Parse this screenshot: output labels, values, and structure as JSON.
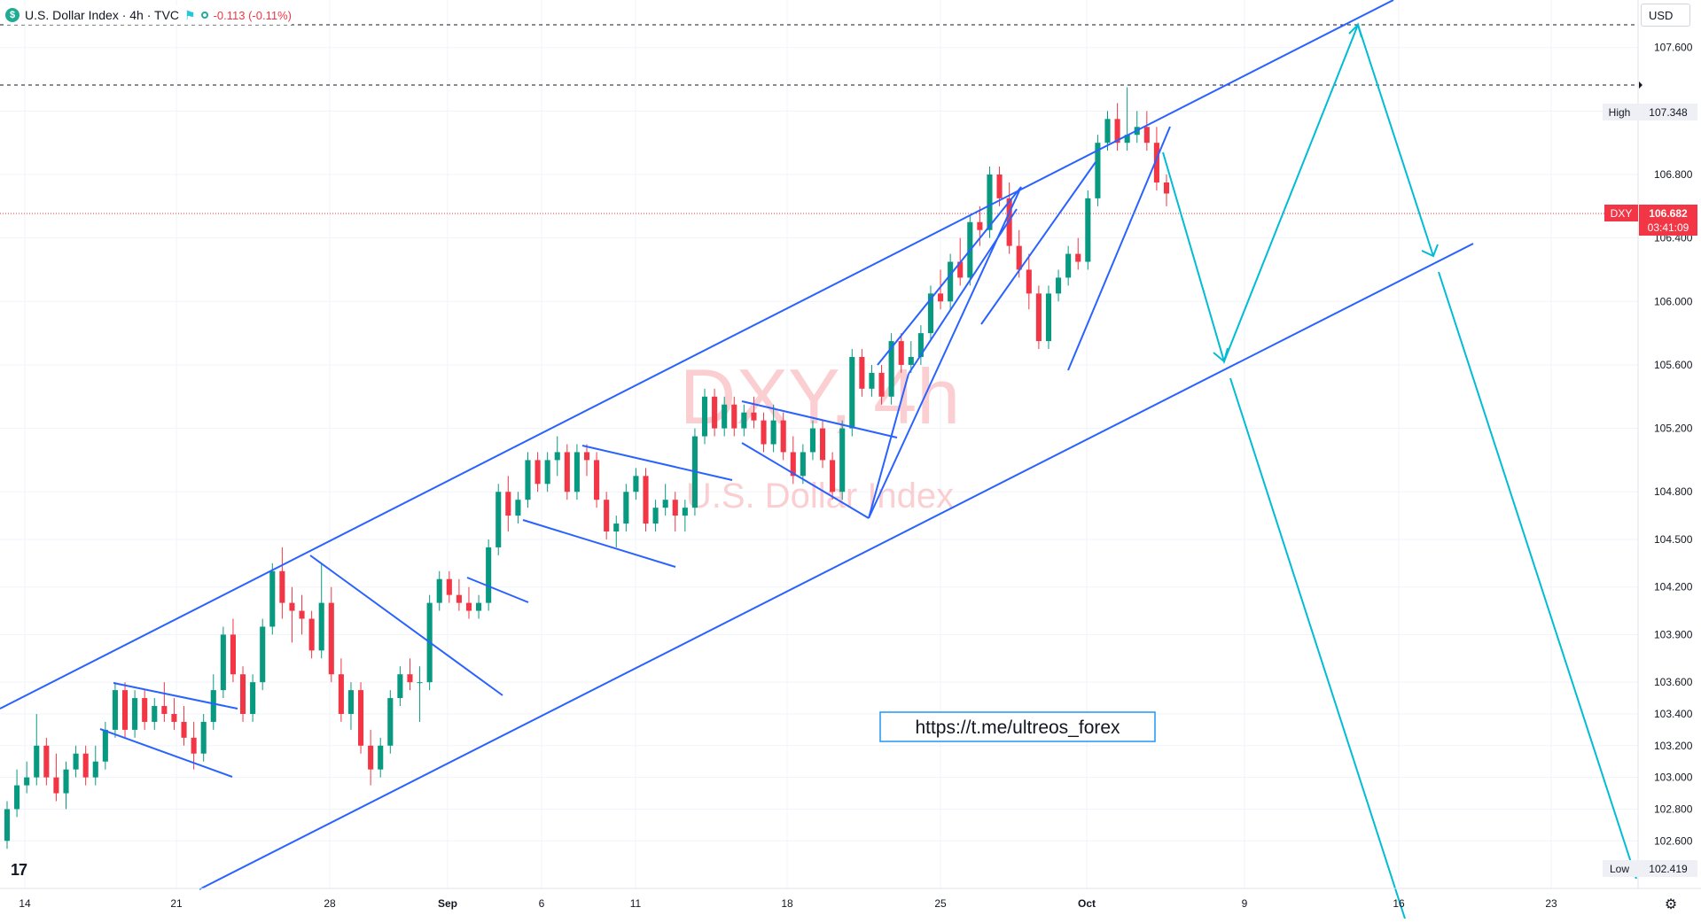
{
  "legend": {
    "symbol_icon": "dollar-circle-icon",
    "title": "U.S. Dollar Index · 4h · TVC",
    "change": "-0.113 (-0.11%)",
    "flag_icon": "flag-icon",
    "status_icon": "market-status-icon"
  },
  "currency_button": "USD",
  "watermark": {
    "symbol": "DXY, 4h",
    "name": "U.S. Dollar Index"
  },
  "telegram_link": "https://t.me/ultreos_forex",
  "colors": {
    "up": "#089981",
    "down": "#f23645",
    "pattern": "#2962ff",
    "projection": "#00bcd4",
    "accent": "#2962ff"
  },
  "price_axis": {
    "labels": [
      "107.600",
      "107.200",
      "106.800",
      "106.400",
      "106.000",
      "105.600",
      "105.200",
      "104.800",
      "104.500",
      "104.200",
      "103.900",
      "103.600",
      "103.400",
      "103.200",
      "103.000",
      "102.800",
      "102.600"
    ],
    "high_tag": "High",
    "high_value": "107.348",
    "low_tag": "Low",
    "low_value": "102.419",
    "current_tag": "DXY",
    "current_value": "106.682",
    "countdown": "03:41:09"
  },
  "time_axis": {
    "labels": [
      "14",
      "21",
      "28",
      "Sep",
      "6",
      "11",
      "18",
      "25",
      "Oct",
      "9",
      "16",
      "23"
    ]
  },
  "chart_data": {
    "type": "candlestick",
    "series_name": "DXY",
    "timeframe": "4h",
    "exchange": "TVC",
    "last_close": 106.682,
    "period_high": 107.348,
    "period_low": 102.419,
    "y_range": [
      102.3,
      107.9
    ],
    "y_ticks": [
      107.6,
      107.2,
      106.8,
      106.4,
      106.0,
      105.6,
      105.2,
      104.8,
      104.5,
      104.2,
      103.9,
      103.6,
      103.4,
      103.2,
      103.0,
      102.8,
      102.6
    ],
    "x_ticks": [
      "14",
      "21",
      "28",
      "Sep",
      "6",
      "11",
      "18",
      "25",
      "Oct",
      "9",
      "16",
      "23"
    ],
    "candles": [
      [
        102.6,
        102.85,
        102.55,
        102.8
      ],
      [
        102.8,
        103.05,
        102.75,
        102.95
      ],
      [
        102.95,
        103.1,
        102.9,
        103.0
      ],
      [
        103.0,
        103.4,
        102.95,
        103.2
      ],
      [
        103.2,
        103.25,
        102.95,
        103.0
      ],
      [
        103.0,
        103.15,
        102.85,
        102.9
      ],
      [
        102.9,
        103.1,
        102.8,
        103.05
      ],
      [
        103.05,
        103.2,
        103.0,
        103.15
      ],
      [
        103.15,
        103.2,
        102.95,
        103.0
      ],
      [
        103.0,
        103.2,
        102.95,
        103.1
      ],
      [
        103.1,
        103.35,
        103.05,
        103.3
      ],
      [
        103.3,
        103.6,
        103.25,
        103.55
      ],
      [
        103.55,
        103.6,
        103.25,
        103.3
      ],
      [
        103.3,
        103.55,
        103.25,
        103.5
      ],
      [
        103.5,
        103.55,
        103.3,
        103.35
      ],
      [
        103.35,
        103.5,
        103.3,
        103.45
      ],
      [
        103.45,
        103.6,
        103.35,
        103.4
      ],
      [
        103.4,
        103.5,
        103.3,
        103.35
      ],
      [
        103.35,
        103.45,
        103.2,
        103.25
      ],
      [
        103.25,
        103.35,
        103.05,
        103.15
      ],
      [
        103.15,
        103.4,
        103.1,
        103.35
      ],
      [
        103.35,
        103.65,
        103.3,
        103.55
      ],
      [
        103.55,
        103.95,
        103.5,
        103.9
      ],
      [
        103.9,
        104.0,
        103.6,
        103.65
      ],
      [
        103.65,
        103.7,
        103.35,
        103.4
      ],
      [
        103.4,
        103.65,
        103.35,
        103.6
      ],
      [
        103.6,
        104.0,
        103.55,
        103.95
      ],
      [
        103.95,
        104.35,
        103.9,
        104.3
      ],
      [
        104.3,
        104.45,
        104.0,
        104.1
      ],
      [
        104.1,
        104.2,
        103.85,
        104.05
      ],
      [
        104.05,
        104.15,
        103.9,
        104.0
      ],
      [
        104.0,
        104.05,
        103.75,
        103.8
      ],
      [
        103.8,
        104.35,
        103.75,
        104.1
      ],
      [
        104.1,
        104.2,
        103.6,
        103.65
      ],
      [
        103.65,
        103.75,
        103.35,
        103.4
      ],
      [
        103.4,
        103.6,
        103.3,
        103.55
      ],
      [
        103.55,
        103.6,
        103.15,
        103.2
      ],
      [
        103.2,
        103.3,
        102.95,
        103.05
      ],
      [
        103.05,
        103.25,
        103.0,
        103.2
      ],
      [
        103.2,
        103.55,
        103.15,
        103.5
      ],
      [
        103.5,
        103.7,
        103.45,
        103.65
      ],
      [
        103.65,
        103.75,
        103.55,
        103.6
      ],
      [
        103.6,
        103.7,
        103.35,
        103.6
      ],
      [
        103.6,
        104.15,
        103.55,
        104.1
      ],
      [
        104.1,
        104.3,
        104.05,
        104.25
      ],
      [
        104.25,
        104.3,
        104.1,
        104.15
      ],
      [
        104.15,
        104.25,
        104.05,
        104.1
      ],
      [
        104.1,
        104.2,
        104.0,
        104.05
      ],
      [
        104.05,
        104.15,
        104.0,
        104.1
      ],
      [
        104.1,
        104.5,
        104.05,
        104.45
      ],
      [
        104.45,
        104.85,
        104.4,
        104.8
      ],
      [
        104.8,
        104.9,
        104.55,
        104.65
      ],
      [
        104.65,
        104.8,
        104.6,
        104.75
      ],
      [
        104.75,
        105.05,
        104.7,
        105.0
      ],
      [
        105.0,
        105.05,
        104.8,
        104.85
      ],
      [
        104.85,
        105.05,
        104.8,
        105.0
      ],
      [
        105.0,
        105.15,
        104.9,
        105.05
      ],
      [
        105.05,
        105.1,
        104.75,
        104.8
      ],
      [
        104.8,
        105.1,
        104.75,
        105.05
      ],
      [
        105.05,
        105.1,
        104.9,
        105.0
      ],
      [
        105.0,
        105.05,
        104.7,
        104.75
      ],
      [
        104.75,
        104.8,
        104.5,
        104.55
      ],
      [
        104.55,
        104.65,
        104.45,
        104.6
      ],
      [
        104.6,
        104.85,
        104.55,
        104.8
      ],
      [
        104.8,
        104.95,
        104.75,
        104.9
      ],
      [
        104.9,
        104.95,
        104.55,
        104.6
      ],
      [
        104.6,
        104.75,
        104.55,
        104.7
      ],
      [
        104.7,
        104.85,
        104.65,
        104.75
      ],
      [
        104.75,
        104.8,
        104.55,
        104.65
      ],
      [
        104.65,
        104.75,
        104.55,
        104.7
      ],
      [
        104.7,
        105.2,
        104.65,
        105.15
      ],
      [
        105.15,
        105.45,
        105.1,
        105.4
      ],
      [
        105.4,
        105.45,
        105.15,
        105.2
      ],
      [
        105.2,
        105.4,
        105.15,
        105.35
      ],
      [
        105.35,
        105.4,
        105.15,
        105.2
      ],
      [
        105.2,
        105.35,
        105.15,
        105.3
      ],
      [
        105.3,
        105.4,
        105.2,
        105.25
      ],
      [
        105.25,
        105.3,
        105.05,
        105.1
      ],
      [
        105.1,
        105.35,
        105.05,
        105.25
      ],
      [
        105.25,
        105.3,
        105.0,
        105.05
      ],
      [
        105.05,
        105.15,
        104.85,
        104.9
      ],
      [
        104.9,
        105.1,
        104.85,
        105.05
      ],
      [
        105.05,
        105.25,
        105.0,
        105.2
      ],
      [
        105.2,
        105.25,
        104.95,
        105.0
      ],
      [
        105.0,
        105.05,
        104.75,
        104.8
      ],
      [
        104.8,
        105.25,
        104.75,
        105.2
      ],
      [
        105.2,
        105.7,
        105.15,
        105.65
      ],
      [
        105.65,
        105.7,
        105.4,
        105.45
      ],
      [
        105.45,
        105.6,
        105.4,
        105.55
      ],
      [
        105.55,
        105.6,
        105.35,
        105.4
      ],
      [
        105.4,
        105.8,
        105.35,
        105.75
      ],
      [
        105.75,
        105.8,
        105.55,
        105.6
      ],
      [
        105.6,
        105.75,
        105.55,
        105.65
      ],
      [
        105.65,
        105.85,
        105.6,
        105.8
      ],
      [
        105.8,
        106.1,
        105.75,
        106.05
      ],
      [
        106.05,
        106.2,
        105.95,
        106.0
      ],
      [
        106.0,
        106.3,
        105.95,
        106.25
      ],
      [
        106.25,
        106.4,
        106.1,
        106.15
      ],
      [
        106.15,
        106.55,
        106.1,
        106.5
      ],
      [
        106.5,
        106.6,
        106.35,
        106.45
      ],
      [
        106.45,
        106.85,
        106.4,
        106.8
      ],
      [
        106.8,
        106.85,
        106.6,
        106.65
      ],
      [
        106.65,
        106.75,
        106.3,
        106.35
      ],
      [
        106.35,
        106.45,
        106.15,
        106.2
      ],
      [
        106.2,
        106.3,
        105.95,
        106.05
      ],
      [
        106.05,
        106.1,
        105.7,
        105.75
      ],
      [
        105.75,
        106.1,
        105.7,
        106.05
      ],
      [
        106.05,
        106.2,
        106.0,
        106.15
      ],
      [
        106.15,
        106.35,
        106.1,
        106.3
      ],
      [
        106.3,
        106.4,
        106.2,
        106.25
      ],
      [
        106.25,
        106.7,
        106.2,
        106.65
      ],
      [
        106.65,
        107.05,
        106.6,
        107.0
      ],
      [
        107.0,
        107.2,
        106.95,
        107.15
      ],
      [
        107.15,
        107.25,
        106.95,
        107.0
      ],
      [
        107.0,
        107.35,
        106.95,
        107.05
      ],
      [
        107.05,
        107.2,
        107.0,
        107.1
      ],
      [
        107.1,
        107.2,
        106.95,
        107.0
      ],
      [
        107.0,
        107.1,
        106.7,
        106.75
      ],
      [
        106.75,
        106.8,
        106.6,
        106.68
      ]
    ],
    "patterns": [
      {
        "label": "ascending-channel",
        "points": [
          [
            "Aug 26",
            "104.46"
          ],
          [
            "Sep 27",
            "106.90"
          ]
        ]
      },
      {
        "label": "bull-flag",
        "note": "falling wedges and flags within channel"
      }
    ],
    "projection": {
      "path_values": [
        106.68,
        105.7,
        107.85,
        106.35,
        102.4
      ],
      "alt_path_values": [
        105.7,
        101.6
      ]
    },
    "grid": true
  }
}
